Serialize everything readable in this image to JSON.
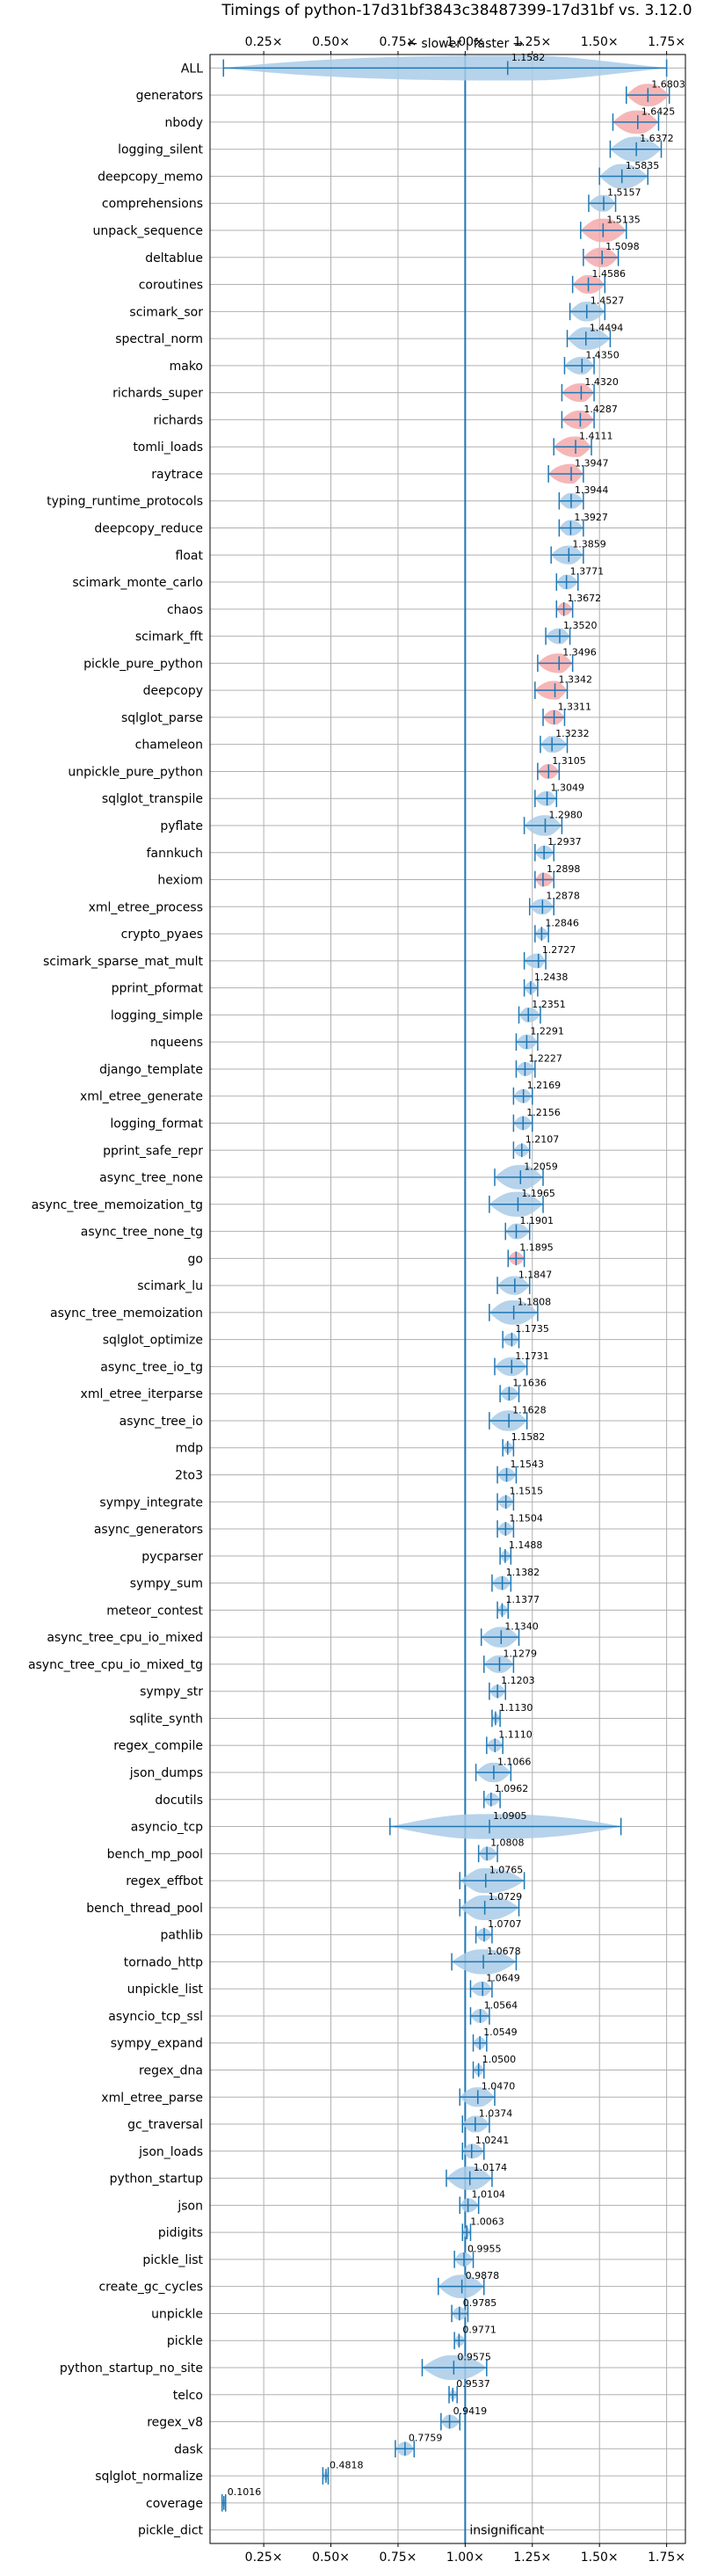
{
  "chart_data": {
    "type": "violin",
    "title": "Timings of python-17d31bf3843c38487399-17d31bf vs. 3.12.0",
    "direction_label": "← slower | faster →",
    "x_ticks": [
      0.25,
      0.5,
      0.75,
      1.0,
      1.25,
      1.5,
      1.75
    ],
    "x_tick_labels": [
      "0.25×",
      "0.50×",
      "0.75×",
      "1.00×",
      "1.25×",
      "1.50×",
      "1.75×"
    ],
    "xlim": [
      0.05,
      1.82
    ],
    "grid": true,
    "reference_line": 1.0,
    "colors": {
      "violin_normal": "#a9cbe8",
      "violin_highlight": "#f4a9ab",
      "whisker": "#1f77b4",
      "reference": "#1f77b4"
    },
    "insignificant_label": "insignificant",
    "benchmarks": [
      {
        "name": "ALL",
        "value": 1.1582,
        "label": "1.1582",
        "min": 0.1,
        "max": 1.75,
        "hl": false
      },
      {
        "name": "generators",
        "value": 1.6803,
        "label": "1.6803",
        "min": 1.6,
        "max": 1.76,
        "hl": true
      },
      {
        "name": "nbody",
        "value": 1.6425,
        "label": "1.6425",
        "min": 1.55,
        "max": 1.72,
        "hl": true
      },
      {
        "name": "logging_silent",
        "value": 1.6372,
        "label": "1.6372",
        "min": 1.54,
        "max": 1.73,
        "hl": false
      },
      {
        "name": "deepcopy_memo",
        "value": 1.5835,
        "label": "1.5835",
        "min": 1.5,
        "max": 1.68,
        "hl": false
      },
      {
        "name": "comprehensions",
        "value": 1.5157,
        "label": "1.5157",
        "min": 1.46,
        "max": 1.56,
        "hl": false
      },
      {
        "name": "unpack_sequence",
        "value": 1.5135,
        "label": "1.5135",
        "min": 1.43,
        "max": 1.6,
        "hl": true
      },
      {
        "name": "deltablue",
        "value": 1.5098,
        "label": "1.5098",
        "min": 1.44,
        "max": 1.57,
        "hl": true
      },
      {
        "name": "coroutines",
        "value": 1.4586,
        "label": "1.4586",
        "min": 1.4,
        "max": 1.52,
        "hl": true
      },
      {
        "name": "scimark_sor",
        "value": 1.4527,
        "label": "1.4527",
        "min": 1.39,
        "max": 1.52,
        "hl": false
      },
      {
        "name": "spectral_norm",
        "value": 1.4494,
        "label": "1.4494",
        "min": 1.38,
        "max": 1.54,
        "hl": false
      },
      {
        "name": "mako",
        "value": 1.435,
        "label": "1.4350",
        "min": 1.37,
        "max": 1.48,
        "hl": false
      },
      {
        "name": "richards_super",
        "value": 1.432,
        "label": "1.4320",
        "min": 1.36,
        "max": 1.48,
        "hl": true
      },
      {
        "name": "richards",
        "value": 1.4287,
        "label": "1.4287",
        "min": 1.36,
        "max": 1.48,
        "hl": true
      },
      {
        "name": "tomli_loads",
        "value": 1.4111,
        "label": "1.4111",
        "min": 1.33,
        "max": 1.47,
        "hl": true
      },
      {
        "name": "raytrace",
        "value": 1.3947,
        "label": "1.3947",
        "min": 1.31,
        "max": 1.44,
        "hl": true
      },
      {
        "name": "typing_runtime_protocols",
        "value": 1.3944,
        "label": "1.3944",
        "min": 1.35,
        "max": 1.44,
        "hl": false
      },
      {
        "name": "deepcopy_reduce",
        "value": 1.3927,
        "label": "1.3927",
        "min": 1.35,
        "max": 1.44,
        "hl": false
      },
      {
        "name": "float",
        "value": 1.3859,
        "label": "1.3859",
        "min": 1.32,
        "max": 1.44,
        "hl": false
      },
      {
        "name": "scimark_monte_carlo",
        "value": 1.3771,
        "label": "1.3771",
        "min": 1.34,
        "max": 1.42,
        "hl": false
      },
      {
        "name": "chaos",
        "value": 1.3672,
        "label": "1.3672",
        "min": 1.34,
        "max": 1.4,
        "hl": true
      },
      {
        "name": "scimark_fft",
        "value": 1.352,
        "label": "1.3520",
        "min": 1.3,
        "max": 1.39,
        "hl": false
      },
      {
        "name": "pickle_pure_python",
        "value": 1.3496,
        "label": "1.3496",
        "min": 1.27,
        "max": 1.4,
        "hl": true
      },
      {
        "name": "deepcopy",
        "value": 1.3342,
        "label": "1.3342",
        "min": 1.26,
        "max": 1.38,
        "hl": true
      },
      {
        "name": "sqlglot_parse",
        "value": 1.3311,
        "label": "1.3311",
        "min": 1.29,
        "max": 1.37,
        "hl": true
      },
      {
        "name": "chameleon",
        "value": 1.3232,
        "label": "1.3232",
        "min": 1.28,
        "max": 1.38,
        "hl": false
      },
      {
        "name": "unpickle_pure_python",
        "value": 1.3105,
        "label": "1.3105",
        "min": 1.27,
        "max": 1.35,
        "hl": true
      },
      {
        "name": "sqlglot_transpile",
        "value": 1.3049,
        "label": "1.3049",
        "min": 1.26,
        "max": 1.34,
        "hl": false
      },
      {
        "name": "pyflate",
        "value": 1.298,
        "label": "1.2980",
        "min": 1.22,
        "max": 1.36,
        "hl": false
      },
      {
        "name": "fannkuch",
        "value": 1.2937,
        "label": "1.2937",
        "min": 1.26,
        "max": 1.33,
        "hl": false
      },
      {
        "name": "hexiom",
        "value": 1.2898,
        "label": "1.2898",
        "min": 1.26,
        "max": 1.33,
        "hl": true
      },
      {
        "name": "xml_etree_process",
        "value": 1.2878,
        "label": "1.2878",
        "min": 1.24,
        "max": 1.33,
        "hl": false
      },
      {
        "name": "crypto_pyaes",
        "value": 1.2846,
        "label": "1.2846",
        "min": 1.26,
        "max": 1.31,
        "hl": false
      },
      {
        "name": "scimark_sparse_mat_mult",
        "value": 1.2727,
        "label": "1.2727",
        "min": 1.22,
        "max": 1.3,
        "hl": false
      },
      {
        "name": "pprint_pformat",
        "value": 1.2438,
        "label": "1.2438",
        "min": 1.22,
        "max": 1.27,
        "hl": false
      },
      {
        "name": "logging_simple",
        "value": 1.2351,
        "label": "1.2351",
        "min": 1.2,
        "max": 1.28,
        "hl": false
      },
      {
        "name": "nqueens",
        "value": 1.2291,
        "label": "1.2291",
        "min": 1.19,
        "max": 1.27,
        "hl": false
      },
      {
        "name": "django_template",
        "value": 1.2227,
        "label": "1.2227",
        "min": 1.19,
        "max": 1.26,
        "hl": false
      },
      {
        "name": "xml_etree_generate",
        "value": 1.2169,
        "label": "1.2169",
        "min": 1.18,
        "max": 1.25,
        "hl": false
      },
      {
        "name": "logging_format",
        "value": 1.2156,
        "label": "1.2156",
        "min": 1.18,
        "max": 1.25,
        "hl": false
      },
      {
        "name": "pprint_safe_repr",
        "value": 1.2107,
        "label": "1.2107",
        "min": 1.18,
        "max": 1.24,
        "hl": false
      },
      {
        "name": "async_tree_none",
        "value": 1.2059,
        "label": "1.2059",
        "min": 1.11,
        "max": 1.29,
        "hl": false
      },
      {
        "name": "async_tree_memoization_tg",
        "value": 1.1965,
        "label": "1.1965",
        "min": 1.09,
        "max": 1.29,
        "hl": false
      },
      {
        "name": "async_tree_none_tg",
        "value": 1.1901,
        "label": "1.1901",
        "min": 1.15,
        "max": 1.24,
        "hl": false
      },
      {
        "name": "go",
        "value": 1.1895,
        "label": "1.1895",
        "min": 1.16,
        "max": 1.22,
        "hl": true
      },
      {
        "name": "scimark_lu",
        "value": 1.1847,
        "label": "1.1847",
        "min": 1.12,
        "max": 1.24,
        "hl": false
      },
      {
        "name": "async_tree_memoization",
        "value": 1.1808,
        "label": "1.1808",
        "min": 1.09,
        "max": 1.27,
        "hl": false
      },
      {
        "name": "sqlglot_optimize",
        "value": 1.1735,
        "label": "1.1735",
        "min": 1.14,
        "max": 1.2,
        "hl": false
      },
      {
        "name": "async_tree_io_tg",
        "value": 1.1731,
        "label": "1.1731",
        "min": 1.11,
        "max": 1.23,
        "hl": false
      },
      {
        "name": "xml_etree_iterparse",
        "value": 1.1636,
        "label": "1.1636",
        "min": 1.13,
        "max": 1.2,
        "hl": false
      },
      {
        "name": "async_tree_io",
        "value": 1.1628,
        "label": "1.1628",
        "min": 1.09,
        "max": 1.23,
        "hl": false
      },
      {
        "name": "mdp",
        "value": 1.1582,
        "label": "1.1582",
        "min": 1.14,
        "max": 1.18,
        "hl": false
      },
      {
        "name": "2to3",
        "value": 1.1543,
        "label": "1.1543",
        "min": 1.12,
        "max": 1.19,
        "hl": false
      },
      {
        "name": "sympy_integrate",
        "value": 1.1515,
        "label": "1.1515",
        "min": 1.12,
        "max": 1.18,
        "hl": false
      },
      {
        "name": "async_generators",
        "value": 1.1504,
        "label": "1.1504",
        "min": 1.12,
        "max": 1.18,
        "hl": false
      },
      {
        "name": "pycparser",
        "value": 1.1488,
        "label": "1.1488",
        "min": 1.13,
        "max": 1.17,
        "hl": false
      },
      {
        "name": "sympy_sum",
        "value": 1.1382,
        "label": "1.1382",
        "min": 1.1,
        "max": 1.17,
        "hl": false
      },
      {
        "name": "meteor_contest",
        "value": 1.1377,
        "label": "1.1377",
        "min": 1.12,
        "max": 1.16,
        "hl": false
      },
      {
        "name": "async_tree_cpu_io_mixed",
        "value": 1.134,
        "label": "1.1340",
        "min": 1.06,
        "max": 1.2,
        "hl": false
      },
      {
        "name": "async_tree_cpu_io_mixed_tg",
        "value": 1.1279,
        "label": "1.1279",
        "min": 1.07,
        "max": 1.18,
        "hl": false
      },
      {
        "name": "sympy_str",
        "value": 1.1203,
        "label": "1.1203",
        "min": 1.09,
        "max": 1.15,
        "hl": false
      },
      {
        "name": "sqlite_synth",
        "value": 1.113,
        "label": "1.1130",
        "min": 1.1,
        "max": 1.13,
        "hl": false
      },
      {
        "name": "regex_compile",
        "value": 1.111,
        "label": "1.1110",
        "min": 1.08,
        "max": 1.14,
        "hl": false
      },
      {
        "name": "json_dumps",
        "value": 1.1066,
        "label": "1.1066",
        "min": 1.04,
        "max": 1.17,
        "hl": false
      },
      {
        "name": "docutils",
        "value": 1.0962,
        "label": "1.0962",
        "min": 1.07,
        "max": 1.13,
        "hl": false
      },
      {
        "name": "asyncio_tcp",
        "value": 1.0905,
        "label": "1.0905",
        "min": 0.72,
        "max": 1.58,
        "hl": false
      },
      {
        "name": "bench_mp_pool",
        "value": 1.0808,
        "label": "1.0808",
        "min": 1.05,
        "max": 1.12,
        "hl": false
      },
      {
        "name": "regex_effbot",
        "value": 1.0765,
        "label": "1.0765",
        "min": 0.98,
        "max": 1.22,
        "hl": false
      },
      {
        "name": "bench_thread_pool",
        "value": 1.0729,
        "label": "1.0729",
        "min": 0.98,
        "max": 1.2,
        "hl": false
      },
      {
        "name": "pathlib",
        "value": 1.0707,
        "label": "1.0707",
        "min": 1.04,
        "max": 1.1,
        "hl": false
      },
      {
        "name": "tornado_http",
        "value": 1.0678,
        "label": "1.0678",
        "min": 0.95,
        "max": 1.19,
        "hl": false
      },
      {
        "name": "unpickle_list",
        "value": 1.0649,
        "label": "1.0649",
        "min": 1.02,
        "max": 1.1,
        "hl": false
      },
      {
        "name": "asyncio_tcp_ssl",
        "value": 1.0564,
        "label": "1.0564",
        "min": 1.02,
        "max": 1.09,
        "hl": false
      },
      {
        "name": "sympy_expand",
        "value": 1.0549,
        "label": "1.0549",
        "min": 1.03,
        "max": 1.08,
        "hl": false
      },
      {
        "name": "regex_dna",
        "value": 1.05,
        "label": "1.0500",
        "min": 1.03,
        "max": 1.07,
        "hl": false
      },
      {
        "name": "xml_etree_parse",
        "value": 1.047,
        "label": "1.0470",
        "min": 0.98,
        "max": 1.11,
        "hl": false
      },
      {
        "name": "gc_traversal",
        "value": 1.0374,
        "label": "1.0374",
        "min": 0.99,
        "max": 1.09,
        "hl": false
      },
      {
        "name": "json_loads",
        "value": 1.0241,
        "label": "1.0241",
        "min": 0.99,
        "max": 1.07,
        "hl": false
      },
      {
        "name": "python_startup",
        "value": 1.0174,
        "label": "1.0174",
        "min": 0.93,
        "max": 1.1,
        "hl": false
      },
      {
        "name": "json",
        "value": 1.0104,
        "label": "1.0104",
        "min": 0.98,
        "max": 1.05,
        "hl": false
      },
      {
        "name": "pidigits",
        "value": 1.0063,
        "label": "1.0063",
        "min": 0.99,
        "max": 1.02,
        "hl": false
      },
      {
        "name": "pickle_list",
        "value": 0.9955,
        "label": "0.9955",
        "min": 0.96,
        "max": 1.03,
        "hl": false
      },
      {
        "name": "create_gc_cycles",
        "value": 0.9878,
        "label": "0.9878",
        "min": 0.9,
        "max": 1.07,
        "hl": false
      },
      {
        "name": "unpickle",
        "value": 0.9785,
        "label": "0.9785",
        "min": 0.95,
        "max": 1.01,
        "hl": false
      },
      {
        "name": "pickle",
        "value": 0.9771,
        "label": "0.9771",
        "min": 0.96,
        "max": 1.0,
        "hl": false
      },
      {
        "name": "python_startup_no_site",
        "value": 0.9575,
        "label": "0.9575",
        "min": 0.84,
        "max": 1.08,
        "hl": false
      },
      {
        "name": "telco",
        "value": 0.9537,
        "label": "0.9537",
        "min": 0.94,
        "max": 0.97,
        "hl": false
      },
      {
        "name": "regex_v8",
        "value": 0.9419,
        "label": "0.9419",
        "min": 0.91,
        "max": 0.98,
        "hl": false
      },
      {
        "name": "dask",
        "value": 0.7759,
        "label": "0.7759",
        "min": 0.74,
        "max": 0.81,
        "hl": false
      },
      {
        "name": "sqlglot_normalize",
        "value": 0.4818,
        "label": "0.4818",
        "min": 0.47,
        "max": 0.49,
        "hl": false
      },
      {
        "name": "coverage",
        "value": 0.1016,
        "label": "0.1016",
        "min": 0.095,
        "max": 0.108,
        "hl": false
      },
      {
        "name": "pickle_dict",
        "value": null,
        "label": "",
        "min": null,
        "max": null,
        "hl": false,
        "insignificant": true
      }
    ]
  }
}
